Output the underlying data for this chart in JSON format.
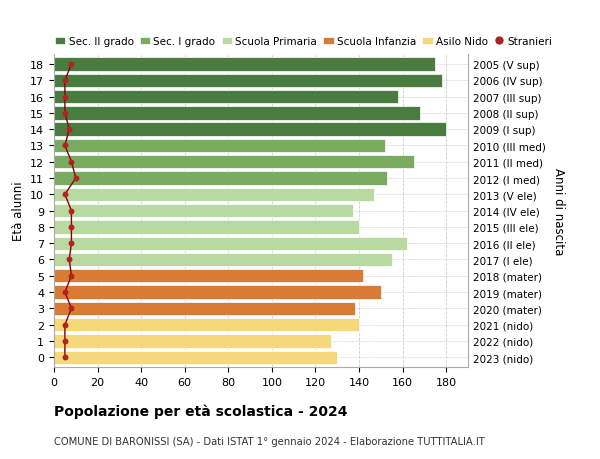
{
  "ages": [
    18,
    17,
    16,
    15,
    14,
    13,
    12,
    11,
    10,
    9,
    8,
    7,
    6,
    5,
    4,
    3,
    2,
    1,
    0
  ],
  "right_labels": [
    "2005 (V sup)",
    "2006 (IV sup)",
    "2007 (III sup)",
    "2008 (II sup)",
    "2009 (I sup)",
    "2010 (III med)",
    "2011 (II med)",
    "2012 (I med)",
    "2013 (V ele)",
    "2014 (IV ele)",
    "2015 (III ele)",
    "2016 (II ele)",
    "2017 (I ele)",
    "2018 (mater)",
    "2019 (mater)",
    "2020 (mater)",
    "2021 (nido)",
    "2022 (nido)",
    "2023 (nido)"
  ],
  "bar_values": [
    175,
    178,
    158,
    168,
    180,
    152,
    165,
    153,
    147,
    137,
    140,
    162,
    155,
    142,
    150,
    138,
    140,
    127,
    130
  ],
  "stranieri_values": [
    8,
    5,
    5,
    5,
    7,
    5,
    8,
    10,
    5,
    8,
    8,
    8,
    7,
    8,
    5,
    8,
    5,
    5,
    5
  ],
  "bar_colors": [
    "#4a7c3f",
    "#4a7c3f",
    "#4a7c3f",
    "#4a7c3f",
    "#4a7c3f",
    "#7aab5e",
    "#7aab5e",
    "#7aab5e",
    "#b8d9a0",
    "#b8d9a0",
    "#b8d9a0",
    "#b8d9a0",
    "#b8d9a0",
    "#d97b35",
    "#d97b35",
    "#d97b35",
    "#f5d87a",
    "#f5d87a",
    "#f5d87a"
  ],
  "legend_labels": [
    "Sec. II grado",
    "Sec. I grado",
    "Scuola Primaria",
    "Scuola Infanzia",
    "Asilo Nido",
    "Stranieri"
  ],
  "legend_colors": [
    "#4a7c3f",
    "#7aab5e",
    "#b8d9a0",
    "#d97b35",
    "#f5d87a",
    "#b22222"
  ],
  "ylabel_left": "Età alunni",
  "ylabel_right": "Anni di nascita",
  "title": "Popolazione per età scolastica - 2024",
  "subtitle": "COMUNE DI BARONISSI (SA) - Dati ISTAT 1° gennaio 2024 - Elaborazione TUTTITALIA.IT",
  "xlim": [
    0,
    190
  ],
  "xticks": [
    0,
    20,
    40,
    60,
    80,
    100,
    120,
    140,
    160,
    180
  ],
  "bg_color": "#ffffff",
  "grid_color": "#cccccc",
  "bar_height": 0.82
}
